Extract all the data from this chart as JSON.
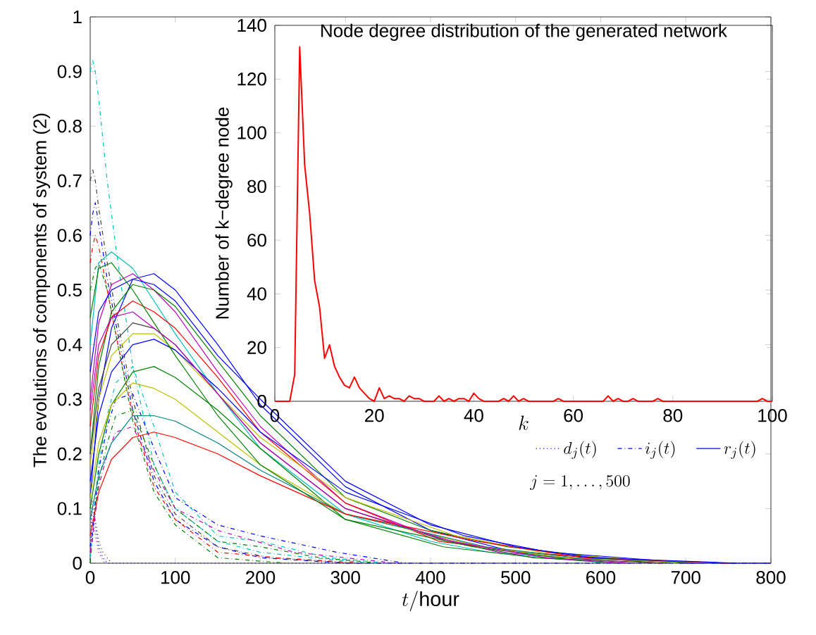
{
  "chart_data": [
    {
      "type": "line",
      "xlabel": "t/\\mathrm{hour}",
      "ylabel": "The evolutions of components of system (2)",
      "xlim": [
        0,
        800
      ],
      "ylim": [
        0,
        1
      ],
      "xticks": [
        0,
        100,
        200,
        300,
        400,
        500,
        600,
        700,
        800
      ],
      "yticks": [
        0,
        0.1,
        0.2,
        0.3,
        0.4,
        0.5,
        0.6,
        0.7,
        0.8,
        0.9,
        1
      ],
      "legend": "right",
      "annotations": [
        "j=1,\\ldots,500"
      ],
      "series": [
        {
          "name": "d_j(t)",
          "color": "#0000ff",
          "line_style": "dotted",
          "x": [
            0,
            2,
            5,
            10,
            15,
            20,
            800
          ],
          "values": [
            0,
            0.1,
            0.08,
            0.03,
            0.01,
            0,
            0
          ]
        },
        {
          "name": "i_j(t)",
          "color": "#0000ff",
          "line_style": "dashdot",
          "x": [
            0,
            3,
            6,
            10,
            20,
            30,
            50,
            75,
            100,
            150,
            200,
            300,
            400,
            800
          ],
          "values": [
            0.6,
            0.64,
            0.66,
            0.62,
            0.52,
            0.44,
            0.28,
            0.15,
            0.08,
            0.03,
            0.01,
            0,
            0,
            0
          ]
        },
        {
          "name": "r_j(t)",
          "color": "#0000ff",
          "line_style": "solid",
          "x": [
            0,
            10,
            25,
            50,
            75,
            100,
            150,
            200,
            300,
            400,
            500,
            600,
            700,
            800
          ],
          "values": [
            0.12,
            0.3,
            0.43,
            0.52,
            0.53,
            0.5,
            0.4,
            0.29,
            0.14,
            0.06,
            0.02,
            0.01,
            0,
            0
          ]
        },
        {
          "color": "#404040",
          "line_style": "dotted",
          "x": [
            0,
            2,
            5,
            10,
            15,
            25
          ],
          "values": [
            0,
            0.12,
            0.09,
            0.04,
            0.02,
            0
          ]
        },
        {
          "color": "#bf00bf",
          "line_style": "dotted",
          "x": [
            0,
            2,
            5,
            10,
            17
          ],
          "values": [
            0,
            0.08,
            0.06,
            0.02,
            0
          ]
        },
        {
          "color": "#00bfbf",
          "line_style": "dashdot",
          "x": [
            0,
            3,
            6,
            10,
            20,
            30,
            50,
            75,
            100,
            150,
            200,
            260,
            330
          ],
          "values": [
            0.9,
            0.92,
            0.9,
            0.85,
            0.7,
            0.58,
            0.36,
            0.18,
            0.1,
            0.04,
            0.02,
            0.01,
            0
          ]
        },
        {
          "color": "#404040",
          "line_style": "dashdot",
          "x": [
            0,
            3,
            6,
            10,
            20,
            30,
            50,
            75,
            100,
            150,
            210,
            310
          ],
          "values": [
            0.7,
            0.72,
            0.7,
            0.65,
            0.55,
            0.46,
            0.3,
            0.16,
            0.09,
            0.03,
            0.01,
            0
          ]
        },
        {
          "color": "#ff0000",
          "line_style": "dashdot",
          "x": [
            0,
            3,
            6,
            10,
            20,
            30,
            50,
            75,
            100,
            150,
            220,
            320
          ],
          "values": [
            0.55,
            0.58,
            0.6,
            0.58,
            0.5,
            0.42,
            0.27,
            0.14,
            0.08,
            0.02,
            0.01,
            0
          ]
        },
        {
          "color": "#008000",
          "line_style": "dashdot",
          "x": [
            0,
            3,
            6,
            10,
            20,
            30,
            50,
            75,
            100,
            150,
            230
          ],
          "values": [
            0.5,
            0.52,
            0.54,
            0.55,
            0.5,
            0.42,
            0.26,
            0.13,
            0.07,
            0.01,
            0
          ]
        },
        {
          "color": "#008000",
          "line_style": "dashdot",
          "x": [
            0,
            3,
            6,
            10,
            20,
            30,
            50,
            75,
            100,
            150,
            200,
            270,
            340
          ],
          "values": [
            0,
            0.05,
            0.1,
            0.15,
            0.22,
            0.27,
            0.28,
            0.18,
            0.1,
            0.04,
            0.03,
            0.01,
            0
          ]
        },
        {
          "color": "#00bfbf",
          "line_style": "dashdot",
          "x": [
            0,
            3,
            6,
            10,
            20,
            30,
            50,
            75,
            100,
            150,
            200,
            280,
            350
          ],
          "values": [
            0.01,
            0.06,
            0.12,
            0.18,
            0.27,
            0.33,
            0.36,
            0.25,
            0.13,
            0.05,
            0.04,
            0.01,
            0
          ]
        },
        {
          "color": "#bf00bf",
          "line_style": "dashdot",
          "x": [
            0,
            3,
            6,
            10,
            20,
            30,
            50,
            75,
            100,
            150,
            240,
            360
          ],
          "values": [
            0.02,
            0.05,
            0.09,
            0.14,
            0.2,
            0.24,
            0.25,
            0.17,
            0.1,
            0.06,
            0.02,
            0
          ]
        },
        {
          "color": "#0000ff",
          "line_style": "dashdot",
          "x": [
            0,
            3,
            6,
            10,
            20,
            30,
            50,
            75,
            100,
            150,
            200,
            290,
            370
          ],
          "values": [
            0.03,
            0.06,
            0.11,
            0.17,
            0.25,
            0.3,
            0.31,
            0.21,
            0.12,
            0.07,
            0.05,
            0.02,
            0
          ]
        },
        {
          "color": "#00bfbf",
          "line_style": "solid",
          "x": [
            0,
            10,
            25,
            50,
            75,
            100,
            150,
            200,
            300,
            400,
            470,
            610
          ],
          "values": [
            0.4,
            0.55,
            0.57,
            0.54,
            0.48,
            0.42,
            0.31,
            0.21,
            0.09,
            0.04,
            0.02,
            0
          ]
        },
        {
          "color": "#bf00bf",
          "line_style": "solid",
          "x": [
            0,
            10,
            25,
            50,
            75,
            100,
            150,
            200,
            300,
            400,
            480,
            640
          ],
          "values": [
            0.3,
            0.44,
            0.51,
            0.53,
            0.5,
            0.46,
            0.35,
            0.25,
            0.11,
            0.05,
            0.02,
            0
          ]
        },
        {
          "color": "#008000",
          "line_style": "solid",
          "x": [
            0,
            10,
            25,
            50,
            75,
            100,
            150,
            200,
            300,
            400,
            490,
            660
          ],
          "values": [
            0.2,
            0.36,
            0.46,
            0.51,
            0.5,
            0.47,
            0.37,
            0.27,
            0.12,
            0.06,
            0.03,
            0
          ]
        },
        {
          "color": "#ff0000",
          "line_style": "solid",
          "x": [
            0,
            10,
            25,
            50,
            75,
            100,
            150,
            200,
            300,
            410,
            510,
            670
          ],
          "values": [
            0.25,
            0.38,
            0.45,
            0.48,
            0.46,
            0.43,
            0.34,
            0.24,
            0.11,
            0.04,
            0.02,
            0
          ]
        },
        {
          "color": "#404040",
          "line_style": "solid",
          "x": [
            0,
            10,
            25,
            50,
            75,
            100,
            150,
            200,
            300,
            420,
            520,
            680
          ],
          "values": [
            0.2,
            0.32,
            0.4,
            0.44,
            0.43,
            0.4,
            0.31,
            0.22,
            0.1,
            0.04,
            0.01,
            0
          ]
        },
        {
          "color": "#bfbf00",
          "line_style": "solid",
          "x": [
            0,
            10,
            25,
            50,
            75,
            100,
            150,
            200,
            300,
            430,
            530,
            690
          ],
          "values": [
            0.18,
            0.3,
            0.38,
            0.42,
            0.42,
            0.39,
            0.31,
            0.23,
            0.12,
            0.05,
            0.02,
            0
          ]
        },
        {
          "color": "#0000ff",
          "line_style": "solid",
          "x": [
            0,
            10,
            25,
            50,
            75,
            100,
            150,
            200,
            300,
            440,
            540,
            710
          ],
          "values": [
            0.15,
            0.27,
            0.35,
            0.4,
            0.41,
            0.39,
            0.32,
            0.24,
            0.13,
            0.05,
            0.02,
            0
          ]
        },
        {
          "color": "#008000",
          "line_style": "solid",
          "x": [
            0,
            10,
            25,
            50,
            75,
            100,
            150,
            200,
            300,
            450,
            550,
            720
          ],
          "values": [
            0.1,
            0.2,
            0.29,
            0.35,
            0.36,
            0.34,
            0.28,
            0.21,
            0.08,
            0.03,
            0.01,
            0
          ]
        },
        {
          "color": "#bfbf00",
          "line_style": "solid",
          "x": [
            0,
            10,
            25,
            50,
            75,
            100,
            150,
            200,
            300,
            460,
            560,
            730
          ],
          "values": [
            0.12,
            0.22,
            0.29,
            0.33,
            0.32,
            0.3,
            0.24,
            0.18,
            0.09,
            0.03,
            0.01,
            0
          ]
        },
        {
          "color": "#008080",
          "line_style": "solid",
          "x": [
            0,
            10,
            25,
            50,
            75,
            100,
            150,
            200,
            300,
            465,
            570,
            740
          ],
          "values": [
            0.08,
            0.16,
            0.22,
            0.27,
            0.27,
            0.26,
            0.22,
            0.17,
            0.09,
            0.03,
            0.01,
            0
          ]
        },
        {
          "color": "#ff0000",
          "line_style": "solid",
          "x": [
            0,
            10,
            25,
            50,
            75,
            100,
            150,
            200,
            300,
            455,
            580,
            750
          ],
          "values": [
            0.05,
            0.13,
            0.19,
            0.23,
            0.24,
            0.23,
            0.2,
            0.16,
            0.09,
            0.04,
            0.01,
            0
          ]
        },
        {
          "color": "#0000ff",
          "line_style": "solid",
          "x": [
            0,
            10,
            25,
            50,
            75,
            100,
            150,
            200,
            300,
            400,
            500,
            590,
            760
          ],
          "values": [
            0.35,
            0.46,
            0.5,
            0.52,
            0.51,
            0.48,
            0.38,
            0.3,
            0.15,
            0.07,
            0.03,
            0.01,
            0
          ]
        },
        {
          "color": "#008000",
          "line_style": "solid",
          "x": [
            0,
            10,
            25,
            50,
            75,
            100,
            150,
            200,
            300,
            415,
            525,
            620
          ],
          "values": [
            0.45,
            0.54,
            0.55,
            0.5,
            0.44,
            0.38,
            0.27,
            0.18,
            0.08,
            0.03,
            0.01,
            0
          ]
        },
        {
          "color": "#bf00bf",
          "line_style": "solid",
          "x": [
            0,
            10,
            25,
            50,
            75,
            100,
            150,
            200,
            300,
            425,
            535,
            630
          ],
          "values": [
            0.28,
            0.4,
            0.45,
            0.46,
            0.43,
            0.4,
            0.31,
            0.22,
            0.1,
            0.04,
            0.01,
            0
          ]
        }
      ]
    },
    {
      "type": "line",
      "title": "Node degree distribution of the generated network",
      "xlabel": "k",
      "ylabel": "Number of k−degree node",
      "xlim": [
        0,
        100
      ],
      "ylim": [
        0,
        140
      ],
      "xticks": [
        0,
        20,
        40,
        60,
        80,
        100
      ],
      "yticks": [
        0,
        20,
        40,
        60,
        80,
        100,
        120,
        140
      ],
      "series": [
        {
          "color": "#ff0000",
          "line_style": "solid",
          "x": [
            0,
            3,
            4,
            5,
            6,
            7,
            8,
            9,
            10,
            11,
            12,
            13,
            14,
            15,
            16,
            17,
            18,
            19,
            20,
            21,
            22,
            23,
            24,
            25,
            26,
            27,
            28,
            29,
            30,
            32,
            33,
            34,
            35,
            36,
            37,
            38,
            39,
            40,
            41,
            42,
            45,
            46,
            47,
            48,
            49,
            50,
            51,
            56,
            57,
            58,
            66,
            67,
            68,
            69,
            70,
            71,
            72,
            73,
            76,
            77,
            78,
            97,
            98,
            99,
            100
          ],
          "values": [
            0,
            0,
            10,
            132,
            88,
            70,
            45,
            35,
            16,
            21,
            13,
            9,
            6,
            5,
            9,
            5,
            3,
            1,
            0,
            5,
            1,
            2,
            1,
            1,
            0,
            2,
            1,
            1,
            0,
            0,
            2,
            0,
            1,
            0,
            1,
            1,
            0,
            3,
            1,
            0,
            0,
            1,
            0,
            2,
            0,
            1,
            0,
            0,
            1,
            0,
            0,
            2,
            0,
            1,
            0,
            0,
            1,
            0,
            0,
            1,
            0,
            0,
            1,
            0,
            0
          ]
        }
      ]
    }
  ]
}
